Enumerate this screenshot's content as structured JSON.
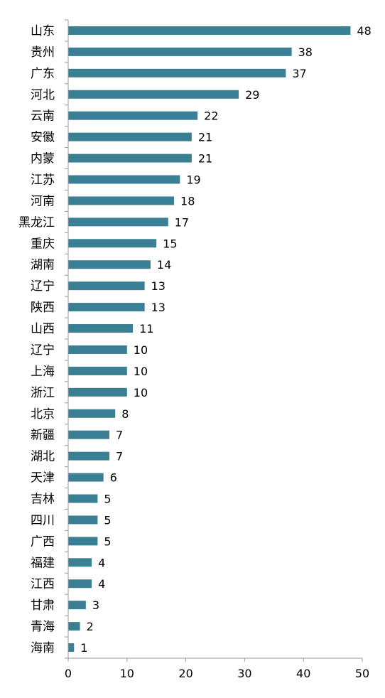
{
  "chart_data": {
    "type": "bar",
    "orientation": "horizontal",
    "categories": [
      "山东",
      "贵州",
      "广东",
      "河北",
      "云南",
      "安徽",
      "内蒙",
      "江苏",
      "河南",
      "黑龙江",
      "重庆",
      "湖南",
      "辽宁",
      "陕西",
      "山西",
      "辽宁",
      "上海",
      "浙江",
      "北京",
      "新疆",
      "湖北",
      "天津",
      "吉林",
      "四川",
      "广西",
      "福建",
      "江西",
      "甘肃",
      "青海",
      "海南"
    ],
    "values": [
      48,
      38,
      37,
      29,
      22,
      21,
      21,
      19,
      18,
      17,
      15,
      14,
      13,
      13,
      11,
      10,
      10,
      10,
      8,
      7,
      7,
      6,
      5,
      5,
      5,
      4,
      4,
      3,
      2,
      1
    ],
    "title": "",
    "xlabel": "",
    "ylabel": "",
    "xlim": [
      0,
      50
    ],
    "xticks": [
      "0",
      "10",
      "20",
      "30",
      "40",
      "50"
    ],
    "grid": false,
    "legend": "none",
    "bar_color": "#3a7f94",
    "axis_color": "#9a9a9a",
    "label_color": "#000000"
  }
}
